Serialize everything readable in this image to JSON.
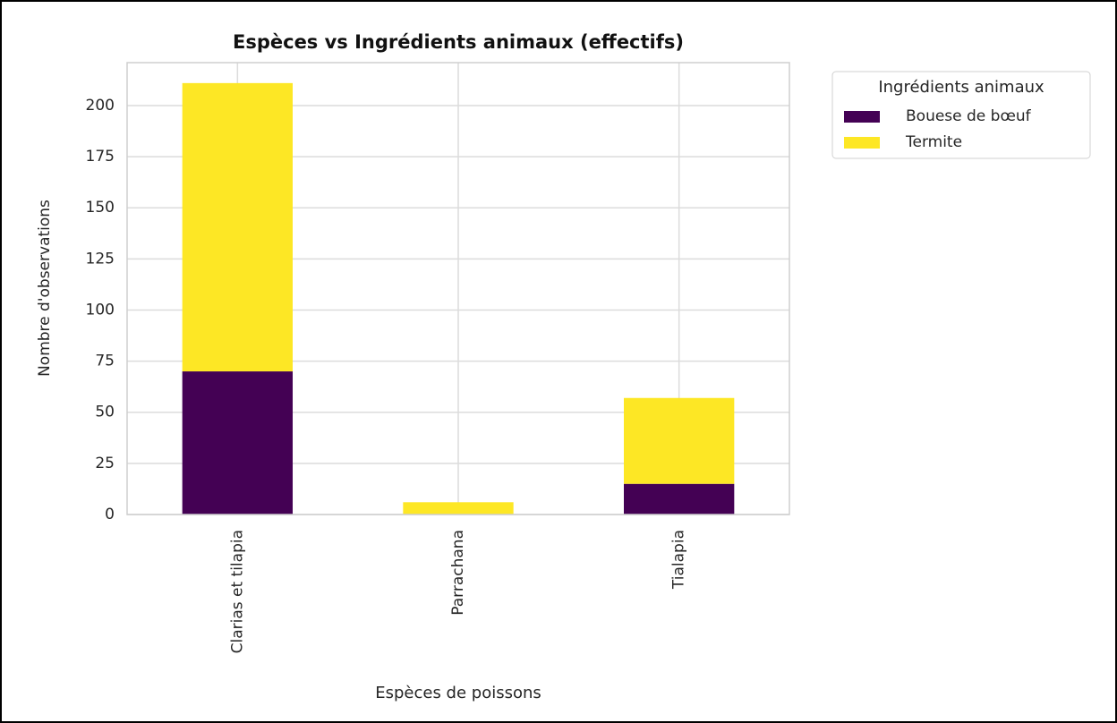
{
  "chart_data": {
    "type": "stacked_bar",
    "title": "Espèces vs Ingrédients animaux (effectifs)",
    "x_label": "Espèces de poissons",
    "y_label": "Nombre d'observations",
    "legend_title": "Ingrédients animaux",
    "categories": [
      "Clarias et tilapia",
      "Parrachana",
      "Tialapia"
    ],
    "series": [
      {
        "name": "Bouese de bœuf",
        "color": "#440154",
        "values": [
          70,
          0,
          15
        ]
      },
      {
        "name": "Termite",
        "color": "#fde725",
        "values": [
          141,
          6,
          42
        ]
      }
    ],
    "ylim": [
      0,
      221
    ],
    "yticks": [
      0,
      25,
      50,
      75,
      100,
      125,
      150,
      175,
      200
    ],
    "grid": true,
    "legend_position": "outside-right"
  }
}
